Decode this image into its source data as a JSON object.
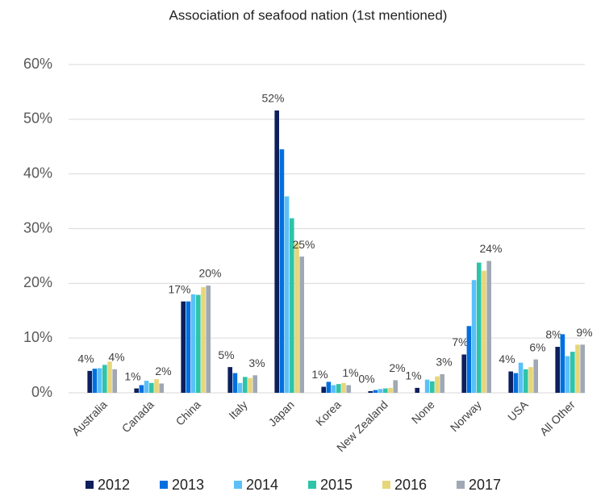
{
  "chart_data": {
    "type": "bar",
    "title": "Association of seafood nation (1st mentioned)",
    "categories": [
      "Australia",
      "Canada",
      "China",
      "Italy",
      "Japan",
      "Korea",
      "New Zealand",
      "None",
      "Norway",
      "USA",
      "All Other"
    ],
    "ylim": [
      0,
      60
    ],
    "yticks": [
      {
        "value": 0,
        "label": "0%"
      },
      {
        "value": 10,
        "label": "10%"
      },
      {
        "value": 20,
        "label": "20%"
      },
      {
        "value": 30,
        "label": "30%"
      },
      {
        "value": 40,
        "label": "40%"
      },
      {
        "value": 50,
        "label": "50%"
      },
      {
        "value": 60,
        "label": "60%"
      }
    ],
    "grid": true,
    "legend": "bottom",
    "series": [
      {
        "name": "2012",
        "color": "#0d1f5c",
        "values": [
          4.0,
          0.8,
          16.7,
          4.7,
          51.6,
          1.1,
          0.3,
          0.9,
          7.0,
          3.9,
          8.4
        ],
        "value_labels": [
          "4%",
          "1%",
          "17%",
          "5%",
          "52%",
          "1%",
          "0%",
          "1%",
          "7%",
          "4%",
          "8%"
        ]
      },
      {
        "name": "2013",
        "color": "#0070e0",
        "values": [
          4.4,
          1.4,
          16.7,
          3.6,
          44.5,
          2.0,
          0.5,
          0,
          12.2,
          3.6,
          10.7
        ]
      },
      {
        "name": "2014",
        "color": "#5bc0f8",
        "values": [
          4.5,
          2.2,
          18.0,
          1.8,
          35.9,
          1.4,
          0.7,
          2.4,
          20.6,
          5.5,
          6.7
        ]
      },
      {
        "name": "2015",
        "color": "#2ec4a8",
        "values": [
          5.1,
          1.8,
          17.9,
          2.9,
          31.9,
          1.6,
          0.8,
          2.1,
          23.8,
          4.3,
          7.5
        ]
      },
      {
        "name": "2016",
        "color": "#e6d67a",
        "values": [
          5.7,
          2.5,
          19.3,
          2.7,
          27.4,
          1.8,
          0.9,
          3.0,
          22.3,
          4.7,
          8.8
        ]
      },
      {
        "name": "2017",
        "color": "#a0a8b4",
        "values": [
          4.3,
          1.7,
          19.6,
          3.2,
          24.9,
          1.4,
          2.3,
          3.4,
          24.1,
          6.1,
          8.8
        ],
        "value_labels": [
          "4%",
          "2%",
          "20%",
          "3%",
          "25%",
          "1%",
          "2%",
          "3%",
          "24%",
          "6%",
          "9%"
        ]
      }
    ]
  }
}
